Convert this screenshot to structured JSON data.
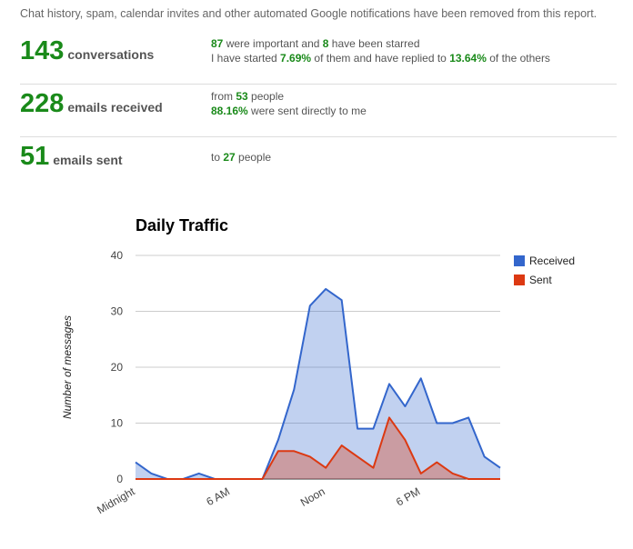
{
  "notice": "Chat history, spam, calendar invites and other automated Google notifications have been removed from this report.",
  "stats": {
    "conversations": {
      "value": "143",
      "unit": "conversations",
      "line1": {
        "a": "87",
        "b": " were important and ",
        "c": "8",
        "d": " have been starred"
      },
      "line2": {
        "a": "I have started ",
        "b": "7.69%",
        "c": " of them and have replied to ",
        "d": "13.64%",
        "e": " of the others"
      }
    },
    "received": {
      "value": "228",
      "unit": "emails received",
      "line1": {
        "a": "from ",
        "b": "53",
        "c": " people"
      },
      "line2": {
        "a": "88.16%",
        "b": " were sent directly to me"
      }
    },
    "sent": {
      "value": "51",
      "unit": "emails sent",
      "line1": {
        "a": "to ",
        "b": "27",
        "c": " people"
      }
    }
  },
  "colors": {
    "accent_green": "#1a8a1a",
    "received": "#3366cc",
    "sent": "#dc3912"
  },
  "chart_data": {
    "type": "area",
    "title": "Daily Traffic",
    "xlabel": "",
    "ylabel": "Number of messages",
    "ylim": [
      0,
      40
    ],
    "yticks": [
      0,
      10,
      20,
      30,
      40
    ],
    "x": [
      0,
      1,
      2,
      3,
      4,
      5,
      6,
      7,
      8,
      9,
      10,
      11,
      12,
      13,
      14,
      15,
      16,
      17,
      18,
      19,
      20,
      21,
      22,
      23
    ],
    "xtick_labels": [
      {
        "x": 0,
        "label": "Midnight"
      },
      {
        "x": 6,
        "label": "6 AM"
      },
      {
        "x": 12,
        "label": "Noon"
      },
      {
        "x": 18,
        "label": "6 PM"
      }
    ],
    "series": [
      {
        "name": "Received",
        "color": "#3366cc",
        "values": [
          3,
          1,
          0,
          0,
          1,
          0,
          0,
          0,
          0,
          7,
          16,
          31,
          34,
          32,
          9,
          9,
          17,
          13,
          18,
          10,
          10,
          11,
          4,
          2
        ]
      },
      {
        "name": "Sent",
        "color": "#dc3912",
        "values": [
          0,
          0,
          0,
          0,
          0,
          0,
          0,
          0,
          0,
          5,
          5,
          4,
          2,
          6,
          4,
          2,
          11,
          7,
          1,
          3,
          1,
          0,
          0,
          0
        ]
      }
    ],
    "legend": "right",
    "grid": true
  }
}
